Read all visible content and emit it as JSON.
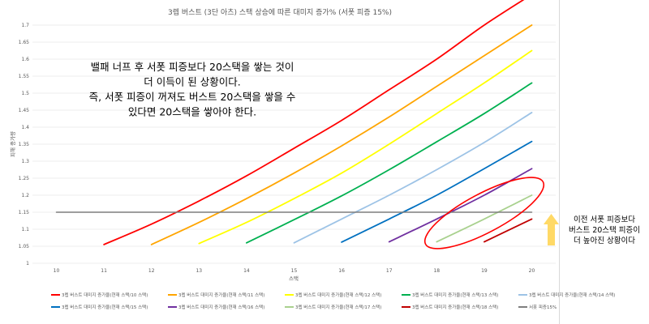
{
  "chart_data": {
    "type": "line",
    "title": "3렙 버스트 (3단 아츠) 스택 상승에 따른 대미지 증가% (서폿 피증 15%)",
    "xlabel": "스택",
    "ylabel": "피해 증가량",
    "xlim": [
      10,
      20
    ],
    "ylim": [
      1,
      1.7
    ],
    "x_ticks": [
      10,
      11,
      12,
      13,
      14,
      15,
      16,
      17,
      18,
      19,
      20
    ],
    "y_ticks": [
      1,
      1.05,
      1.1,
      1.15,
      1.2,
      1.25,
      1.3,
      1.35,
      1.4,
      1.45,
      1.5,
      1.55,
      1.6,
      1.65,
      1.7
    ],
    "grid": "horizontal",
    "legend_position": "bottom",
    "series": [
      {
        "name": "3렙 버스트 대미지 증가율(현재 스택/10 스택)",
        "color": "#ff0000",
        "x": [
          11,
          12,
          13,
          14,
          15,
          16,
          17,
          18,
          19,
          20
        ],
        "y": [
          1.055,
          1.115,
          1.183,
          1.257,
          1.338,
          1.42,
          1.51,
          1.6,
          1.7,
          1.79
        ]
      },
      {
        "name": "3렙 버스트 대미지 증가율(현재 스택/11 스택)",
        "color": "#ffa500",
        "x": [
          12,
          13,
          14,
          15,
          16,
          17,
          18,
          19,
          20
        ],
        "y": [
          1.055,
          1.12,
          1.19,
          1.265,
          1.345,
          1.43,
          1.52,
          1.61,
          1.7
        ]
      },
      {
        "name": "3렙 버스트 대미지 증가율(현재 스택/12 스택)",
        "color": "#ffff00",
        "x": [
          13,
          14,
          15,
          16,
          17,
          18,
          19,
          20
        ],
        "y": [
          1.058,
          1.12,
          1.19,
          1.265,
          1.35,
          1.44,
          1.53,
          1.625
        ]
      },
      {
        "name": "3렙 버스트 대미지 증가율(현재 스택/13 스택)",
        "color": "#00b050",
        "x": [
          14,
          15,
          16,
          17,
          18,
          19,
          20
        ],
        "y": [
          1.06,
          1.128,
          1.198,
          1.275,
          1.357,
          1.44,
          1.53
        ]
      },
      {
        "name": "3렙 버스트 대미지 증가율(현재 스택/14 스택)",
        "color": "#9dc3e6",
        "x": [
          15,
          16,
          17,
          18,
          19,
          20
        ],
        "y": [
          1.06,
          1.13,
          1.2,
          1.275,
          1.355,
          1.443
        ]
      },
      {
        "name": "3렙 버스트 대미지 증가율(현재 스택/15 스택)",
        "color": "#0070c0",
        "x": [
          16,
          17,
          18,
          19,
          20
        ],
        "y": [
          1.062,
          1.13,
          1.2,
          1.278,
          1.358
        ]
      },
      {
        "name": "3렙 버스트 대미지 증가율(현재 스택/16 스택)",
        "color": "#7030a0",
        "x": [
          17,
          18,
          19,
          20
        ],
        "y": [
          1.063,
          1.13,
          1.2,
          1.278
        ]
      },
      {
        "name": "3렙 버스트 대미지 증가율(현재 스택/17 스택)",
        "color": "#a9d18e",
        "x": [
          18,
          19,
          20
        ],
        "y": [
          1.063,
          1.13,
          1.2
        ]
      },
      {
        "name": "3렙 버스트 대미지 증가율(현재 스택/18 스택)",
        "color": "#c00000",
        "x": [
          19,
          20
        ],
        "y": [
          1.063,
          1.13
        ]
      },
      {
        "name": "서폿 피증15%",
        "color": "#7f7f7f",
        "x": [
          10,
          20
        ],
        "y": [
          1.15,
          1.15
        ]
      }
    ],
    "annotations": {
      "main_text": [
        "밸패 너프 후 서폿 피증보다 20스택을 쌓는 것이",
        "더 이득이 된 상황이다.",
        "즉, 서폿 피증이 꺼져도 버스트 20스택을 쌓을 수",
        "있다면 20스택을 쌓아야 한다."
      ],
      "side_text": [
        "이전 서폿 피증보다",
        "버스트 20스택 피증이",
        "더 높아진 상황이다"
      ],
      "ellipse_color": "#ff0000",
      "arrow_color": "#ffd966"
    }
  }
}
